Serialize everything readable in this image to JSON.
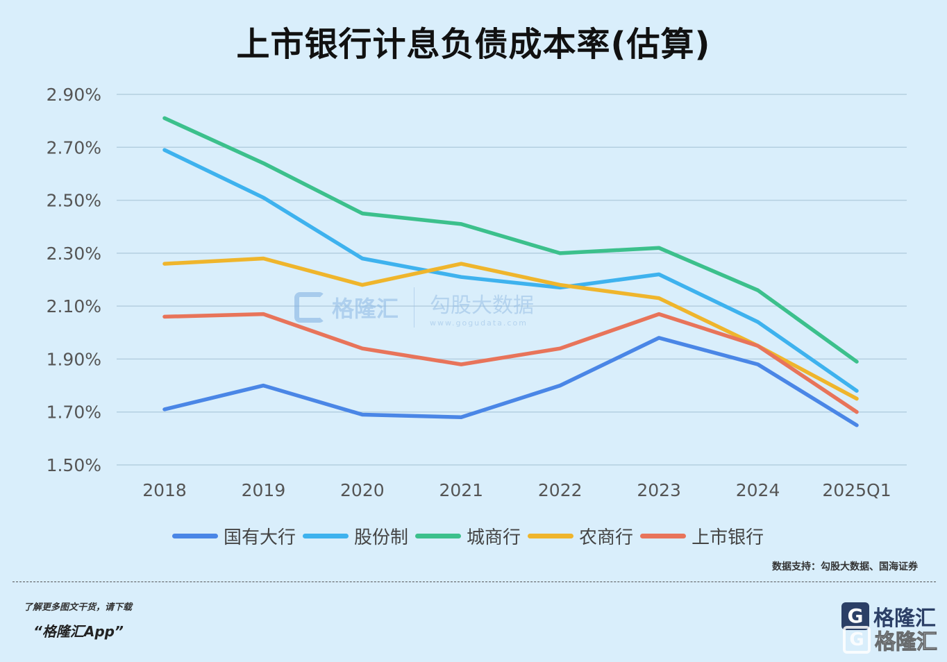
{
  "title": "上市银行计息负债成本率(估算)",
  "chart_data": {
    "type": "line",
    "title": "上市银行计息负债成本率(估算)",
    "categories": [
      "2018",
      "2019",
      "2020",
      "2021",
      "2022",
      "2023",
      "2024",
      "2025Q1"
    ],
    "y_ticks": [
      "2.90%",
      "2.70%",
      "2.50%",
      "2.30%",
      "2.10%",
      "1.90%",
      "1.70%",
      "1.50%"
    ],
    "ylim": [
      1.5,
      2.9
    ],
    "y_unit": "%",
    "grid": true,
    "legend_position": "bottom",
    "series": [
      {
        "name": "国有大行",
        "color": "#4a86e6",
        "values": [
          1.71,
          1.8,
          1.69,
          1.68,
          1.8,
          1.98,
          1.88,
          1.65
        ]
      },
      {
        "name": "股份制",
        "color": "#3eb2ee",
        "values": [
          2.69,
          2.51,
          2.28,
          2.21,
          2.17,
          2.22,
          2.04,
          1.78
        ]
      },
      {
        "name": "城商行",
        "color": "#3cc08c",
        "values": [
          2.81,
          2.64,
          2.45,
          2.41,
          2.3,
          2.32,
          2.16,
          1.89
        ]
      },
      {
        "name": "农商行",
        "color": "#efb52c",
        "values": [
          2.26,
          2.28,
          2.18,
          2.26,
          2.18,
          2.13,
          1.95,
          1.75
        ]
      },
      {
        "name": "上市银行",
        "color": "#e8745a",
        "values": [
          2.06,
          2.07,
          1.94,
          1.88,
          1.94,
          2.07,
          1.95,
          1.7
        ]
      }
    ]
  },
  "source": "数据支持：勾股大数据、国海证券",
  "promo": {
    "line1": "了解更多图文干货，请下载",
    "line2": "“格隆汇App”"
  },
  "watermark": {
    "brand": "格隆汇",
    "sub_brand": "勾股大数据",
    "url": "www.gogudata.com"
  },
  "brand_logo": {
    "glyph": "G",
    "text": "格隆汇"
  }
}
